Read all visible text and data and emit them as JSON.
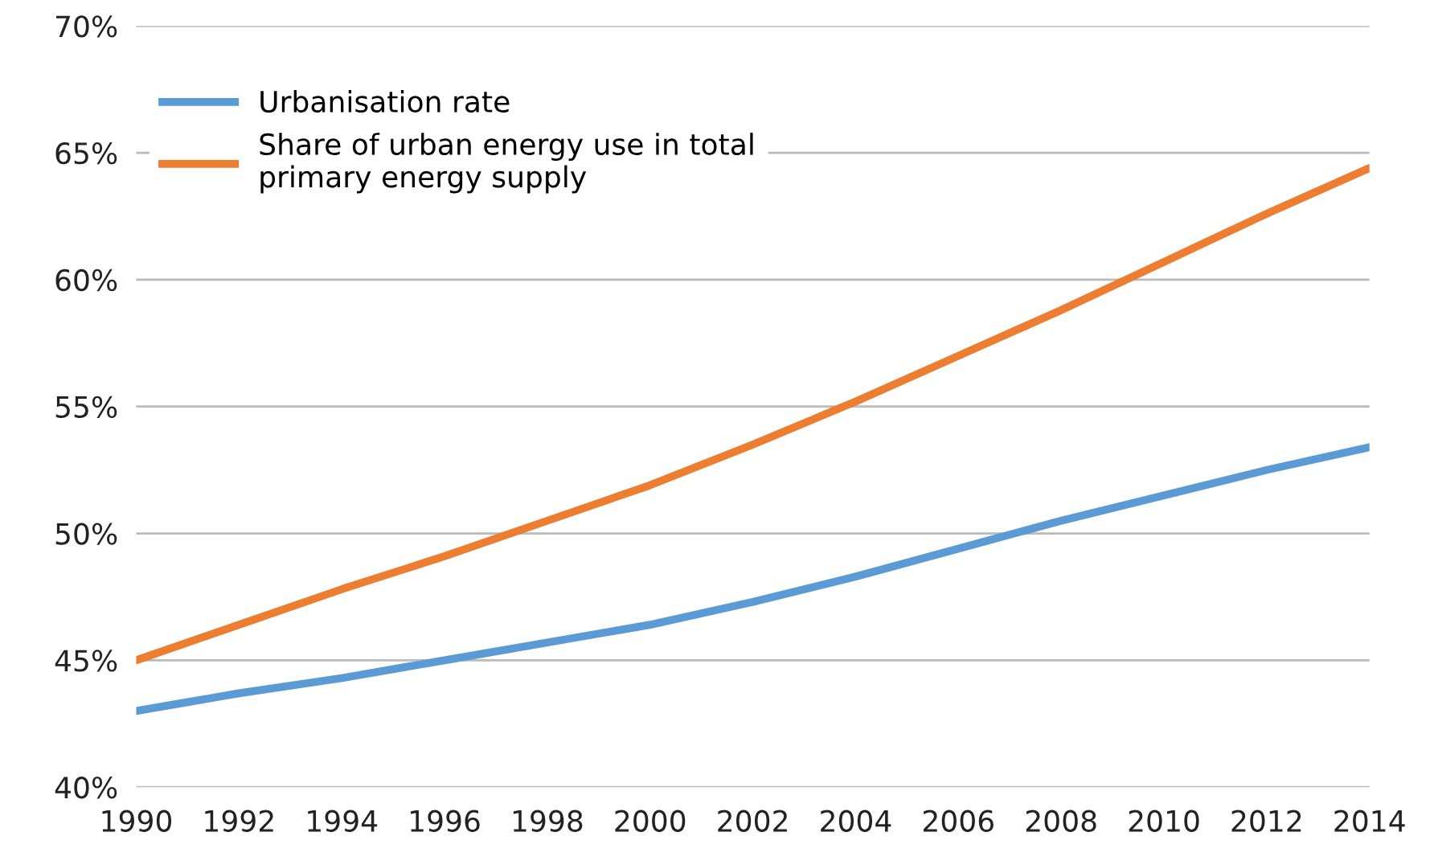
{
  "chart_data": {
    "type": "line",
    "x": [
      1990,
      1992,
      1994,
      1996,
      1998,
      2000,
      2002,
      2004,
      2006,
      2008,
      2010,
      2012,
      2014
    ],
    "series": [
      {
        "name": "Urbanisation rate",
        "color": "#5b9bd5",
        "values": [
          43.0,
          43.7,
          44.3,
          45.0,
          45.7,
          46.4,
          47.3,
          48.3,
          49.4,
          50.5,
          51.5,
          52.5,
          53.4
        ]
      },
      {
        "name": "Share of urban energy use in total\nprimary energy supply",
        "color": "#ed7d31",
        "values": [
          45.0,
          46.4,
          47.8,
          49.1,
          50.5,
          51.9,
          53.5,
          55.2,
          57.0,
          58.8,
          60.7,
          62.6,
          64.4
        ]
      }
    ],
    "xlim": [
      1990,
      2014
    ],
    "xticks": [
      1990,
      1992,
      1994,
      1996,
      1998,
      2000,
      2002,
      2004,
      2006,
      2008,
      2010,
      2012,
      2014
    ],
    "ylim": [
      40,
      70
    ],
    "yticks": [
      {
        "value": 40,
        "label": "40%"
      },
      {
        "value": 45,
        "label": "45%"
      },
      {
        "value": 50,
        "label": "50%"
      },
      {
        "value": 55,
        "label": "55%"
      },
      {
        "value": 60,
        "label": "60%"
      },
      {
        "value": 65,
        "label": "65%"
      },
      {
        "value": 70,
        "label": "70%"
      }
    ],
    "grid": "y",
    "legend": "top left",
    "marker": "none",
    "line_style": "solid"
  }
}
